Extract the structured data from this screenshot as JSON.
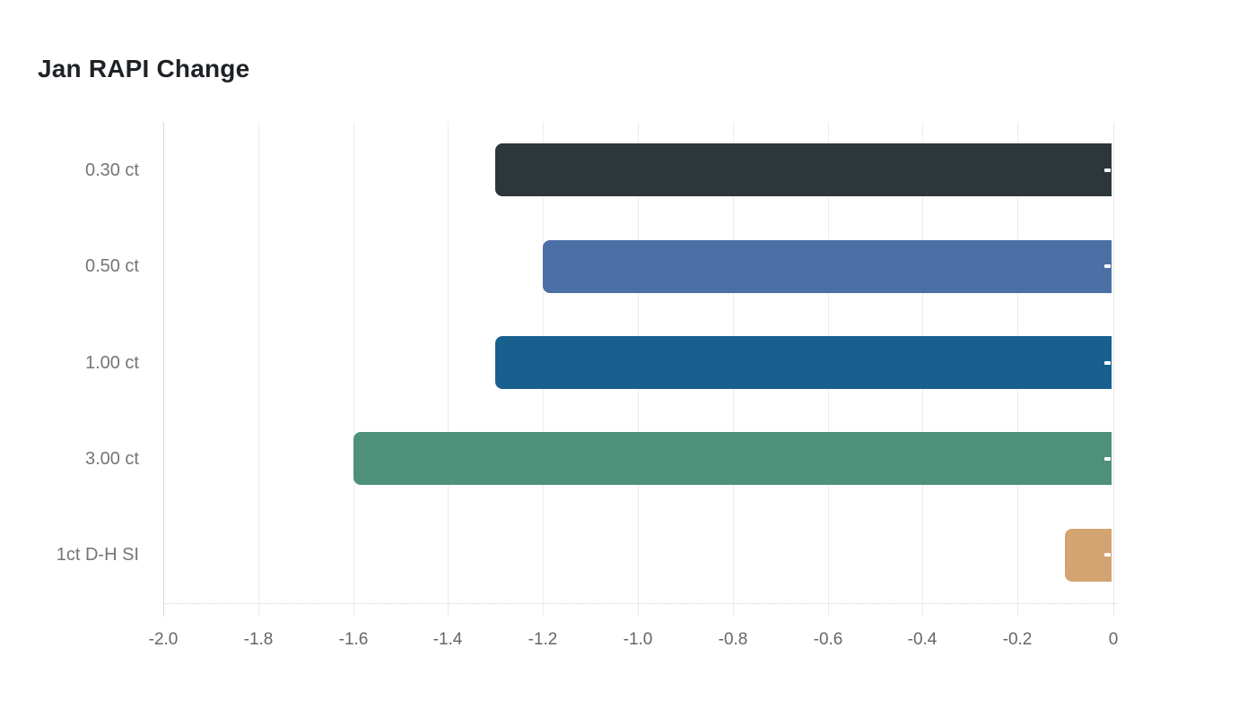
{
  "header": {
    "title": "Jan RAPI Change"
  },
  "chart_data": {
    "type": "bar",
    "orientation": "horizontal",
    "title": "Jan RAPI Change",
    "categories": [
      "0.30 ct",
      "0.50 ct",
      "1.00 ct",
      "3.00 ct",
      "1ct D-H SI"
    ],
    "values": [
      -1.3,
      -1.2,
      -1.3,
      -1.6,
      -0.1
    ],
    "series": [
      {
        "name": "Jan RAPI Change",
        "values": [
          -1.3,
          -1.2,
          -1.3,
          -1.6,
          -0.1
        ]
      }
    ],
    "bar_colors": [
      "#2d363a",
      "#4b70a6",
      "#17608e",
      "#4e9079",
      "#d3a471"
    ],
    "xlabel": "",
    "ylabel": "",
    "xlim": [
      -2.0,
      0
    ],
    "x_tick_values": [
      -2.0,
      -1.8,
      -1.6,
      -1.4,
      -1.2,
      -1.0,
      -0.8,
      -0.6,
      -0.4,
      -0.2,
      0
    ],
    "x_tick_labels": [
      "-2.0",
      "-1.8",
      "-1.6",
      "-1.4",
      "-1.2",
      "-1.0",
      "-0.8",
      "-0.6",
      "-0.4",
      "-0.2",
      "0"
    ],
    "grid": "vertical gridlines on, dotted bottom baseline, ticks extend below axis",
    "legend_position": "none",
    "value_labels": "white labels at bar ends, clipped to a small dash",
    "colors": {
      "background": "#ffffff",
      "title_text": "#1e2125",
      "axis_line": "#d8d8d8",
      "gridline": "#ececec",
      "baseline": "#cfcfcf",
      "category_label": "#757575",
      "tick_label": "#666666",
      "value_label": "#ffffff"
    }
  }
}
